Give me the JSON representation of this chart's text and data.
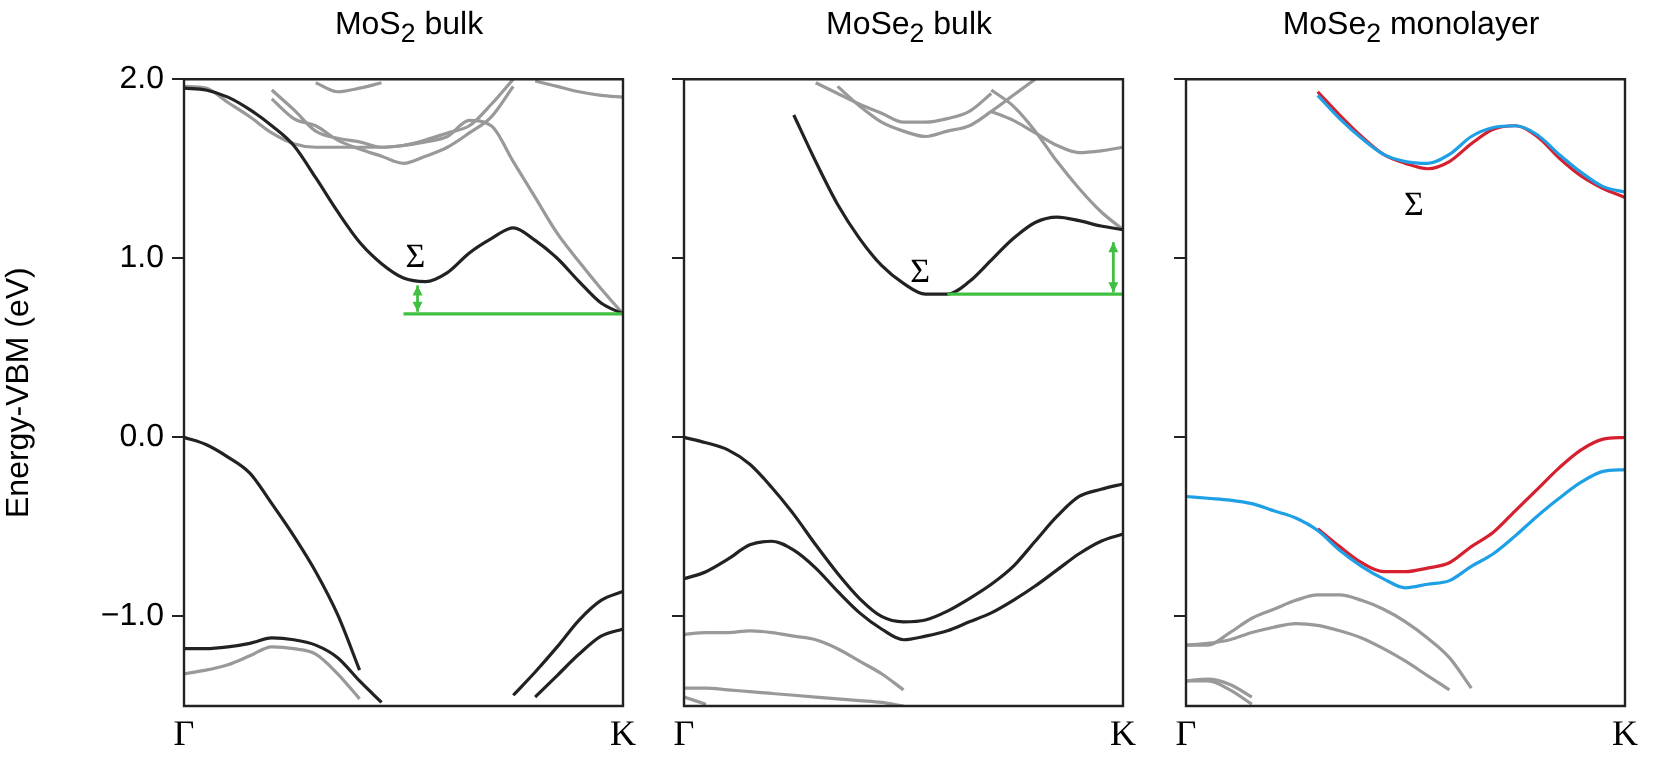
{
  "chart_data": [
    {
      "type": "line",
      "title": "MoS$_{2}$ bulk",
      "ylabel": "Energy-VBM (eV)",
      "categories": [
        "Γ",
        null,
        null,
        null,
        null,
        null,
        null,
        null,
        null,
        null,
        null,
        null,
        null,
        null,
        null,
        null,
        null,
        null,
        null,
        null,
        "K"
      ],
      "ylim": [
        -1.5,
        2.0
      ],
      "yticks": [
        {
          "value": -1,
          "label": "−1.0"
        },
        {
          "value": 0,
          "label": "0.0"
        },
        {
          "value": 1,
          "label": "1.0"
        },
        {
          "value": 2,
          "label": "2.0"
        }
      ],
      "grid": false,
      "legend": false,
      "annotations": [
        "Σ"
      ],
      "series": [
        {
          "color": "#999999",
          "values": [
            1.96,
            1.95,
            1.87,
            1.79,
            1.7,
            1.64,
            1.62,
            1.62,
            1.62,
            1.62,
            1.63,
            1.65,
            1.68,
            1.77,
            1.74,
            1.54,
            1.34,
            1.14,
            0.98,
            0.83,
            0.69
          ]
        },
        {
          "color": "#999999",
          "values": [
            null,
            null,
            null,
            null,
            1.89,
            1.78,
            1.74,
            1.66,
            1.61,
            1.57,
            1.53,
            1.57,
            1.62,
            1.7,
            1.79,
            1.96,
            null,
            null,
            null,
            null,
            null
          ]
        },
        {
          "color": "#999999",
          "values": [
            null,
            null,
            null,
            null,
            1.94,
            1.83,
            1.71,
            1.67,
            1.65,
            1.62,
            1.63,
            1.66,
            1.7,
            1.74,
            1.86,
            2.0,
            null,
            null,
            null,
            null,
            null
          ]
        },
        {
          "color": "#999999",
          "values": [
            null,
            null,
            null,
            null,
            null,
            null,
            1.98,
            1.93,
            1.95,
            1.98,
            null,
            null,
            null,
            null,
            null,
            null,
            null,
            null,
            null,
            null,
            null
          ]
        },
        {
          "color": "#999999",
          "values": [
            null,
            null,
            null,
            null,
            null,
            null,
            null,
            null,
            null,
            null,
            null,
            null,
            null,
            null,
            null,
            null,
            1.99,
            1.96,
            1.93,
            1.91,
            1.9
          ]
        },
        {
          "color": "#222222",
          "values": [
            1.95,
            1.94,
            1.9,
            1.83,
            1.74,
            1.63,
            1.45,
            1.26,
            1.09,
            0.97,
            0.89,
            0.87,
            0.92,
            1.03,
            1.11,
            1.17,
            1.1,
            1.0,
            0.87,
            0.75,
            0.69
          ]
        },
        {
          "color": "#40c040",
          "values": [
            null,
            null,
            null,
            null,
            null,
            null,
            null,
            null,
            null,
            null,
            0.69,
            0.69,
            0.69,
            0.69,
            0.69,
            0.69,
            0.69,
            0.69,
            0.69,
            0.69,
            0.69
          ]
        },
        {
          "color": "#222222",
          "values": [
            0,
            -0.04,
            -0.11,
            -0.2,
            -0.37,
            -0.55,
            -0.75,
            -0.99,
            -1.3,
            null,
            null,
            null,
            null,
            null,
            null,
            null,
            null,
            null,
            null,
            null,
            null
          ]
        },
        {
          "color": "#999999",
          "values": [
            -1.32,
            -1.3,
            -1.27,
            -1.22,
            -1.17,
            -1.18,
            -1.21,
            -1.32,
            -1.46,
            null,
            null,
            null,
            null,
            null,
            null,
            null,
            null,
            null,
            null,
            null,
            null
          ]
        },
        {
          "color": "#222222",
          "values": [
            -1.18,
            -1.18,
            -1.17,
            -1.15,
            -1.12,
            -1.13,
            -1.16,
            -1.23,
            -1.36,
            -1.48,
            null,
            null,
            null,
            null,
            null,
            null,
            null,
            null,
            null,
            null,
            null
          ]
        },
        {
          "color": "#222222",
          "values": [
            null,
            null,
            null,
            null,
            null,
            null,
            null,
            null,
            null,
            null,
            null,
            null,
            null,
            null,
            null,
            -1.44,
            -1.31,
            -1.17,
            -1.02,
            -0.91,
            -0.86
          ]
        },
        {
          "color": "#222222",
          "values": [
            null,
            null,
            null,
            null,
            null,
            null,
            null,
            null,
            null,
            null,
            null,
            null,
            null,
            null,
            null,
            null,
            -1.45,
            -1.33,
            -1.21,
            -1.11,
            -1.07
          ]
        }
      ]
    },
    {
      "type": "line",
      "title": "MoSe$_{2}$ bulk",
      "categories": [
        "Γ",
        null,
        null,
        null,
        null,
        null,
        null,
        null,
        null,
        null,
        null,
        null,
        null,
        null,
        null,
        null,
        null,
        null,
        null,
        null,
        "K"
      ],
      "ylim": [
        -1.5,
        2.0
      ],
      "yticks": [
        {
          "value": -1,
          "label": null
        },
        {
          "value": 0,
          "label": null
        },
        {
          "value": 1,
          "label": null
        },
        {
          "value": 2,
          "label": null
        }
      ],
      "tick_labels": "x",
      "grid": false,
      "legend": false,
      "annotations": [
        "Σ"
      ],
      "series": [
        {
          "color": "#999999",
          "values": [
            null,
            null,
            null,
            null,
            null,
            null,
            1.98,
            1.92,
            1.86,
            1.81,
            1.76,
            1.76,
            1.78,
            1.82,
            1.92,
            null,
            null,
            null,
            null,
            null,
            null
          ]
        },
        {
          "color": "#999999",
          "values": [
            null,
            null,
            null,
            null,
            null,
            null,
            null,
            1.96,
            1.85,
            1.76,
            1.71,
            1.68,
            1.71,
            1.74,
            1.82,
            1.91,
            2.0,
            null,
            null,
            null,
            null
          ]
        },
        {
          "color": "#999999",
          "values": [
            null,
            null,
            null,
            null,
            null,
            null,
            null,
            null,
            null,
            null,
            null,
            null,
            null,
            null,
            1.82,
            1.77,
            1.7,
            1.63,
            1.59,
            1.6,
            1.62
          ]
        },
        {
          "color": "#999999",
          "values": [
            null,
            null,
            null,
            null,
            null,
            null,
            null,
            null,
            null,
            null,
            null,
            null,
            null,
            null,
            1.94,
            1.85,
            1.71,
            1.54,
            1.39,
            1.26,
            1.16
          ]
        },
        {
          "color": "#222222",
          "values": [
            null,
            null,
            null,
            null,
            null,
            1.8,
            1.54,
            1.3,
            1.11,
            0.96,
            0.86,
            0.8,
            0.8,
            0.87,
            0.99,
            1.11,
            1.2,
            1.23,
            1.21,
            1.18,
            1.16
          ]
        },
        {
          "color": "#40c040",
          "values": [
            null,
            null,
            null,
            null,
            null,
            null,
            null,
            null,
            null,
            null,
            null,
            null,
            0.8,
            0.8,
            0.8,
            0.8,
            0.8,
            0.8,
            0.8,
            0.8,
            0.8
          ]
        },
        {
          "color": "#222222",
          "values": [
            0,
            -0.03,
            -0.07,
            -0.15,
            -0.28,
            -0.43,
            -0.6,
            -0.76,
            -0.9,
            -1.0,
            -1.03,
            -1.02,
            -0.97,
            -0.9,
            -0.82,
            -0.72,
            -0.58,
            -0.44,
            -0.33,
            -0.29,
            -0.26
          ]
        },
        {
          "color": "#222222",
          "values": [
            -0.79,
            -0.75,
            -0.68,
            -0.6,
            -0.58,
            -0.63,
            -0.73,
            -0.86,
            -0.98,
            -1.07,
            -1.13,
            -1.11,
            -1.08,
            -1.03,
            -0.98,
            -0.91,
            -0.83,
            -0.74,
            -0.65,
            -0.58,
            -0.54
          ]
        },
        {
          "color": "#999999",
          "values": [
            -1.1,
            -1.09,
            -1.09,
            -1.08,
            -1.09,
            -1.11,
            -1.13,
            -1.18,
            -1.25,
            -1.32,
            -1.41,
            null,
            null,
            null,
            null,
            null,
            null,
            null,
            null,
            null,
            null
          ]
        },
        {
          "color": "#999999",
          "values": [
            -1.4,
            -1.4,
            -1.41,
            -1.42,
            -1.43,
            -1.44,
            -1.45,
            -1.46,
            -1.47,
            -1.48,
            -1.5,
            null,
            null,
            null,
            null,
            null,
            null,
            null,
            null,
            null,
            null
          ]
        },
        {
          "color": "#999999",
          "values": [
            -1.45,
            -1.49,
            null,
            null,
            null,
            null,
            null,
            null,
            null,
            null,
            null,
            null,
            null,
            null,
            null,
            null,
            null,
            null,
            null,
            null,
            null
          ]
        }
      ]
    },
    {
      "type": "line",
      "title": "MoSe$_{2}$ monolayer",
      "categories": [
        "Γ",
        null,
        null,
        null,
        null,
        null,
        null,
        null,
        null,
        null,
        null,
        null,
        null,
        null,
        null,
        null,
        null,
        null,
        null,
        null,
        "K"
      ],
      "ylim": [
        -1.5,
        2.0
      ],
      "yticks": [
        {
          "value": -1,
          "label": null
        },
        {
          "value": 0,
          "label": null
        },
        {
          "value": 1,
          "label": null
        },
        {
          "value": 2,
          "label": null
        }
      ],
      "tick_labels": "x",
      "grid": false,
      "legend": false,
      "annotations": [
        "Σ"
      ],
      "series": [
        {
          "color": "#d62030",
          "values": [
            null,
            null,
            null,
            null,
            null,
            null,
            1.93,
            1.8,
            1.68,
            1.58,
            1.53,
            1.5,
            1.54,
            1.64,
            1.72,
            1.74,
            1.68,
            1.56,
            1.46,
            1.39,
            1.34
          ]
        },
        {
          "color": "#1ea0e6",
          "values": [
            null,
            null,
            null,
            null,
            null,
            null,
            1.91,
            1.78,
            1.67,
            1.58,
            1.54,
            1.53,
            1.58,
            1.68,
            1.73,
            1.74,
            1.69,
            1.58,
            1.48,
            1.4,
            1.37
          ]
        },
        {
          "color": "#d62030",
          "values": [
            null,
            null,
            null,
            null,
            null,
            null,
            -0.51,
            -0.61,
            -0.7,
            -0.75,
            -0.75,
            -0.73,
            -0.7,
            -0.61,
            -0.53,
            -0.41,
            -0.29,
            -0.17,
            -0.07,
            -0.01,
            0.0
          ]
        },
        {
          "color": "#1ea0e6",
          "values": [
            -0.33,
            -0.34,
            -0.35,
            -0.37,
            -0.41,
            -0.45,
            -0.52,
            -0.63,
            -0.72,
            -0.79,
            -0.84,
            -0.82,
            -0.8,
            -0.72,
            -0.65,
            -0.55,
            -0.44,
            -0.34,
            -0.25,
            -0.19,
            -0.18
          ]
        },
        {
          "color": "#999999",
          "values": [
            -1.16,
            -1.16,
            -1.09,
            -1.01,
            -0.96,
            -0.91,
            -0.88,
            -0.88,
            -0.91,
            -0.96,
            -1.03,
            -1.12,
            -1.23,
            -1.4,
            null,
            null,
            null,
            null,
            null,
            null,
            null
          ]
        },
        {
          "color": "#999999",
          "values": [
            -1.16,
            -1.15,
            -1.13,
            -1.09,
            -1.06,
            -1.04,
            -1.05,
            -1.08,
            -1.12,
            -1.18,
            -1.25,
            -1.33,
            -1.41,
            null,
            null,
            null,
            null,
            null,
            null,
            null,
            null
          ]
        },
        {
          "color": "#999999",
          "values": [
            -1.36,
            -1.35,
            -1.38,
            -1.45,
            null,
            null,
            null,
            null,
            null,
            null,
            null,
            null,
            null,
            null,
            null,
            null,
            null,
            null,
            null,
            null,
            null
          ]
        },
        {
          "color": "#999999",
          "values": [
            -1.36,
            -1.36,
            -1.41,
            -1.49,
            null,
            null,
            null,
            null,
            null,
            null,
            null,
            null,
            null,
            null,
            null,
            null,
            null,
            null,
            null,
            null,
            null
          ]
        }
      ]
    }
  ]
}
